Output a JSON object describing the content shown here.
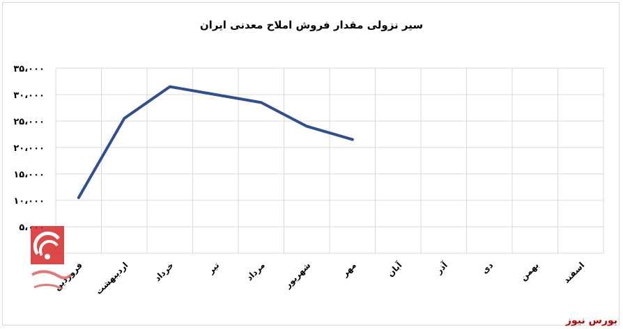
{
  "chart_data": {
    "type": "line",
    "title": "سیر نزولی مقدار فروش املاح معدنی ایران",
    "categories": [
      "فروردین",
      "اردیبهشت",
      "خرداد",
      "تیر",
      "مرداد",
      "شهریور",
      "مهر",
      "آبان",
      "آذر",
      "دی",
      "بهمن",
      "اسفند"
    ],
    "series": [
      {
        "values": [
          10500,
          25500,
          31500,
          30000,
          28500,
          24000,
          21500,
          null,
          null,
          null,
          null,
          null
        ]
      }
    ],
    "y_ticks": [
      "۰",
      "۵،۰۰۰",
      "۱۰،۰۰۰",
      "۱۵،۰۰۰",
      "۲۰،۰۰۰",
      "۲۵،۰۰۰",
      "۳۰،۰۰۰",
      "۳۵،۰۰۰"
    ],
    "ylim": [
      0,
      35000
    ],
    "grid": true,
    "line_color": "#2f4f8f"
  },
  "source": "بورس نیوز"
}
